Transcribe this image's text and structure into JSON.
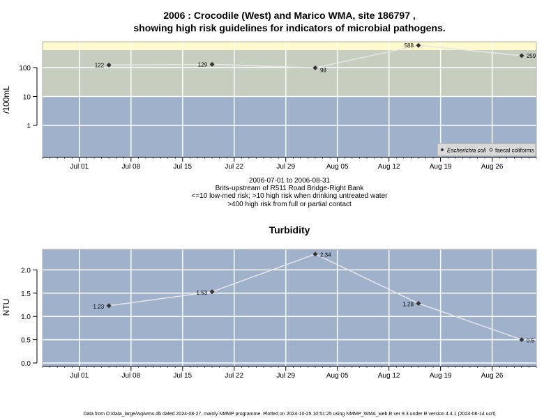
{
  "chart_data": [
    {
      "type": "line",
      "title": "2006 : Crocodile (West) and Marico WMA, site 186797 ,",
      "subtitle": "showing high risk guidelines for indicators of microbial pathogens.",
      "ylabel": "/100mL",
      "yscale": "log",
      "yticks": [
        1,
        10,
        100
      ],
      "ytick_labels": [
        "1",
        "10",
        "100"
      ],
      "xticks": [
        "2006-07-01",
        "2006-07-08",
        "2006-07-15",
        "2006-07-22",
        "2006-07-29",
        "2006-08-05",
        "2006-08-12",
        "2006-08-19",
        "2006-08-26"
      ],
      "xtick_labels": [
        "Jul 01",
        "Jul 08",
        "Jul 15",
        "Jul 22",
        "Jul 29",
        "Aug 05",
        "Aug 12",
        "Aug 19",
        "Aug 26"
      ],
      "xlim": [
        "2006-06-26",
        "2006-09-01"
      ],
      "guideline_bands": [
        {
          "from": 400,
          "to": null,
          "color": "#fffacd"
        },
        {
          "from": 10,
          "to": 400,
          "color": "#c6cfbf"
        },
        {
          "from": null,
          "to": 10,
          "color": "#9fb1cb"
        }
      ],
      "grid": true,
      "legend_position": "bottom-right",
      "legend": [
        {
          "label": "Escherichia coli",
          "italic": true,
          "marker": "filled-diamond"
        },
        {
          "label": "faecal coliforms",
          "italic": false,
          "marker": "open-diamond"
        }
      ],
      "series": [
        {
          "name": "Escherichia coli",
          "x": [
            "2006-07-05",
            "2006-07-19",
            "2006-08-02",
            "2006-08-16",
            "2006-08-30"
          ],
          "values": [
            122,
            129,
            98,
            588,
            259
          ],
          "labels": [
            "122",
            "129",
            "98",
            "588",
            "259"
          ]
        }
      ],
      "faecal_coliform_segment": {
        "x": [
          "2006-07-19",
          "2006-07-27"
        ],
        "values": [
          129,
          110
        ]
      }
    },
    {
      "type": "line",
      "title": "Turbidity",
      "ylabel": "NTU",
      "ylim": [
        -0.08,
        2.42
      ],
      "yticks": [
        0.0,
        0.5,
        1.0,
        1.5,
        2.0
      ],
      "ytick_labels": [
        "0.0",
        "0.5",
        "1.0",
        "1.5",
        "2.0"
      ],
      "xticks": [
        "2006-07-01",
        "2006-07-08",
        "2006-07-15",
        "2006-07-22",
        "2006-07-29",
        "2006-08-05",
        "2006-08-12",
        "2006-08-19",
        "2006-08-26"
      ],
      "xtick_labels": [
        "Jul 01",
        "Jul 08",
        "Jul 15",
        "Jul 22",
        "Jul 29",
        "Aug 05",
        "Aug 12",
        "Aug 19",
        "Aug 26"
      ],
      "xlim": [
        "2006-06-26",
        "2006-09-01"
      ],
      "grid": true,
      "series": [
        {
          "x": [
            "2006-07-05",
            "2006-07-19",
            "2006-08-02",
            "2006-08-16",
            "2006-08-30"
          ],
          "values": [
            1.23,
            1.53,
            2.34,
            1.28,
            0.5
          ],
          "labels": [
            "1.23",
            "1.53",
            "2.34",
            "1.28",
            "0.5"
          ]
        }
      ]
    }
  ],
  "subtitle_lines": [
    "2006-07-01 to 2006-08-31",
    "Brits-upstream of R511 Road Bridge-Right Bank",
    "<=10 low-med risk; >10 high risk when drinking untreated water",
    ">400 high risk from full or partial contact"
  ],
  "footer": "Data from D:/data_large/wq/wms.db dated 2024-08-27, mainly NMMP programme. Plotted on 2024-10-25 10:51:25 using NMMP_WMA_web.R ver 9.3 under R version 4.4.1 (2024-06-14 ucrt)"
}
